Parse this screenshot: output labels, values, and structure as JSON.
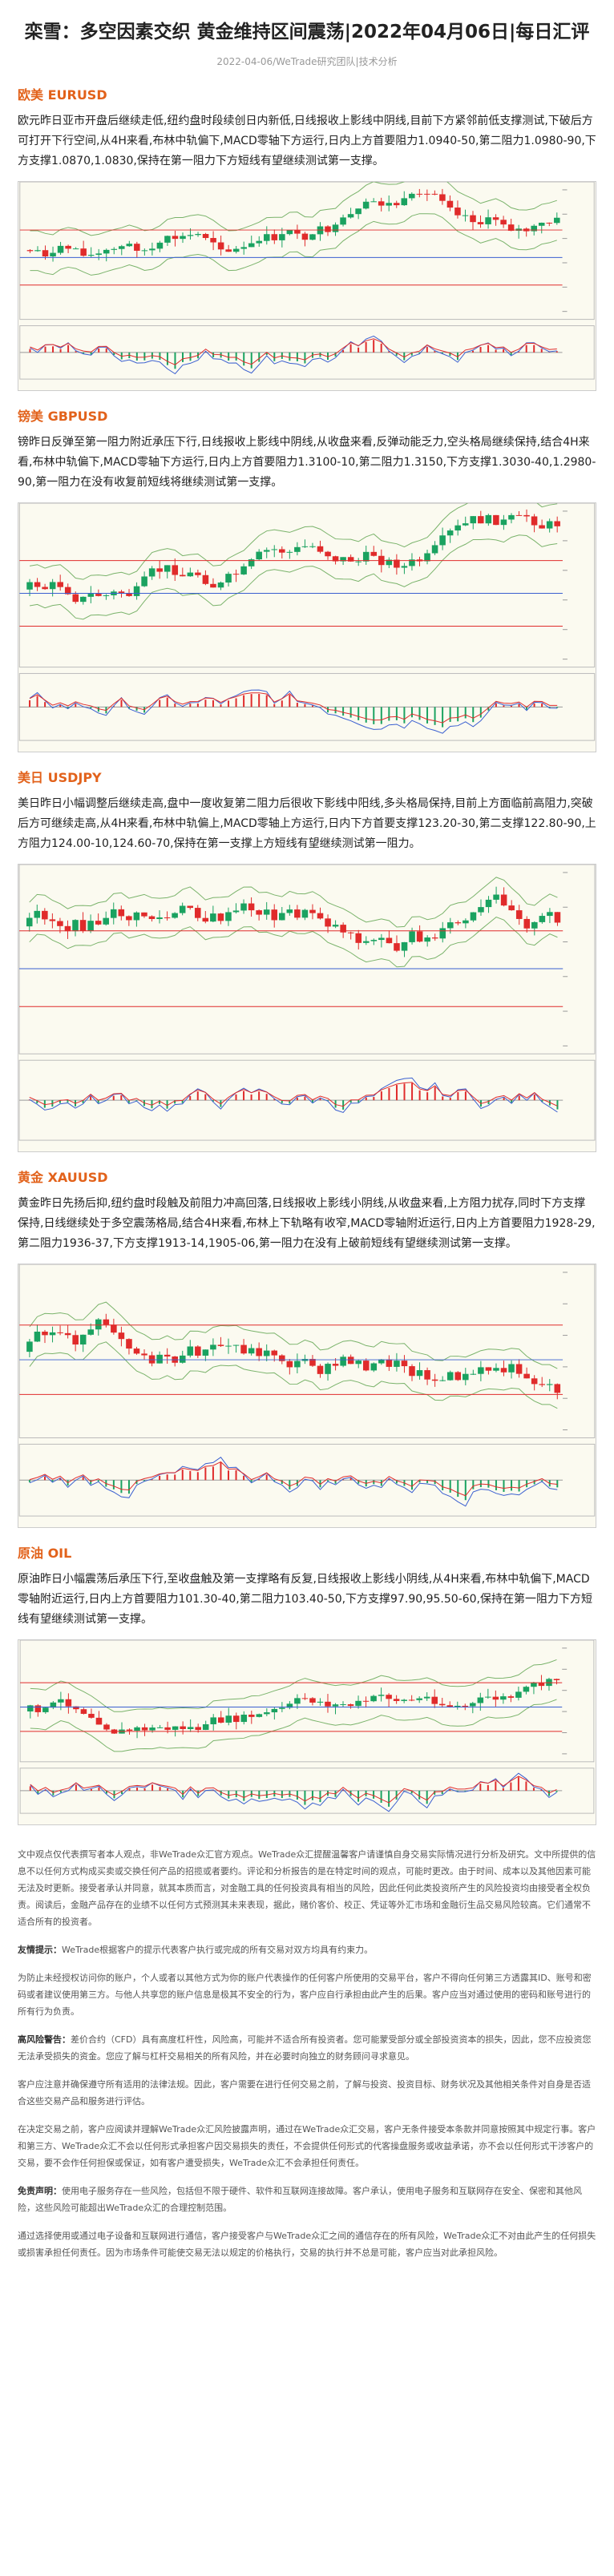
{
  "header": {
    "title": "栾雪：多空因素交织 黄金维持区间震荡|2022年04月06日|每日汇评",
    "meta": "2022-04-06/WeTrade研究团队|技术分析"
  },
  "sections": [
    {
      "heading": "欧美 EURUSD",
      "body": "欧元昨日亚市开盘后继续走低,纽约盘时段续创日内新低,日线报收上影线中阴线,目前下方紧邻前低支撑测试,下破后方可打开下行空间,从4H来看,布林中轨偏下,MACD零轴下方运行,日内上方首要阻力1.0940-50,第二阻力1.0980-90,下方支撑1.0870,1.0830,保持在第一阻力下方短线有望继续测试第一支撑。"
    },
    {
      "heading": "镑美 GBPUSD",
      "body": "镑昨日反弹至第一阻力附近承压下行,日线报收上影线中阴线,从收盘来看,反弹动能乏力,空头格局继续保持,结合4H来看,布林中轨偏下,MACD零轴下方运行,日内上方首要阻力1.3100-10,第二阻力1.3150,下方支撑1.3030-40,1.2980-90,第一阻力在没有收复前短线将继续测试第一支撑。"
    },
    {
      "heading": "美日 USDJPY",
      "body": "美日昨日小幅调整后继续走高,盘中一度收复第二阻力后很收下影线中阳线,多头格局保持,目前上方面临前高阻力,突破后方可继续走高,从4H来看,布林中轨偏上,MACD零轴上方运行,日内下方首要支撑123.20-30,第二支撑122.80-90,上方阻力124.00-10,124.60-70,保持在第一支撑上方短线有望继续测试第一阻力。"
    },
    {
      "heading": "黄金 XAUUSD",
      "body": "黄金昨日先扬后抑,纽约盘时段触及前阻力冲高回落,日线报收上影线小阴线,从收盘来看,上方阻力扰存,同时下方支撑保持,日线继续处于多空震荡格局,结合4H来看,布林上下轨略有收窄,MACD零轴附近运行,日内上方首要阻力1928-29,第二阻力1936-37,下方支撑1913-14,1905-06,第一阻力在没有上破前短线有望继续测试第一支撑。"
    },
    {
      "heading": "原油 OIL",
      "body": "原油昨日小幅震荡后承压下行,至收盘触及第一支撑略有反复,日线报收上影线小阴线,从4H来看,布林中轨偏下,MACD零轴附近运行,日内上方首要阻力101.30-40,第二阻力103.40-50,下方支撑97.90,95.50-60,保持在第一阻力下方短线有望继续测试第一支撑。"
    }
  ],
  "disclaimer": [
    {
      "text": "文中观点仅代表撰写者本人观点，非WeTrade众汇官方观点。WeTrade众汇提醒温馨客户请谨慎自身交易实际情况进行分析及研究。文中所提供的信息不以任何方式构成买卖或交换任何产品的招揽或者要约。评论和分析报告的是在特定时间的观点，可能时更改。由于时间、成本以及其他因素可能无法及时更新。接受者承认并同意，就其本质而言，对金融工具的任何投资具有相当的风险，因此任何此类投资所产生的风险投资均由接受者全权负责。阅读后，金融产品存在的业绩不以任何方式预测其未来表现，据此，赌价客价、校正、凭证等外汇市场和金融衍生品交易风险较高。它们通常不适合所有的投资者。"
    },
    {
      "label": "友情提示：",
      "text": "WeTrade根据客户的提示代表客户执行或完成的所有交易对双方均具有约束力。"
    },
    {
      "text": "为防止未经授权访问你的账户，个人或者以其他方式为你的账户代表操作的任何客户所使用的交易平台，客户不得向任何第三方透露其ID、账号和密码或者建议使用第三方。与他人共享您的账户信息是极其不安全的行为，客户应自行承担由此产生的后果。客户应当对通过使用的密码和账号进行的所有行为负责。"
    },
    {
      "label": "高风险警告：",
      "text": "差价合约（CFD）具有高度杠杆性，风险高，可能并不适合所有投资者。您可能蒙受部分或全部投资资本的损失，因此，您不应投资您无法承受损失的资金。您应了解与杠杆交易相关的所有风险，并在必要时向独立的财务顾问寻求意见。"
    },
    {
      "text": "客户应注意并确保遵守所有适用的法律法规。因此，客户需要在进行任何交易之前，了解与投资、投资目标、财务状况及其他相关条件对自身是否适合这些交易产品和服务进行评估。"
    },
    {
      "text": "在决定交易之前，客户应阅读并理解WeTrade众汇风险披露声明，通过在WeTrade众汇交易，客户无条件接受本条款并同意按照其中规定行事。客户和第三方、WeTrade众汇不会以任何形式承担客户因交易损失的责任，不会提供任何形式的代客操盘服务或收益承诺，亦不会以任何形式干涉客户的交易，要不会作任何担保或保证，如有客户遭受损失，WeTrade众汇不会承担任何责任。"
    },
    {
      "label": "免责声明：",
      "text": "使用电子服务存在一些风险，包括但不限于硬件、软件和互联网连接故障。客户承认，使用电子服务和互联网存在安全、保密和其他风险，这些风险可能超出WeTrade众汇的合理控制范围。"
    },
    {
      "text": "通过选择使用或通过电子设备和互联网进行通信，客户接受客户与WeTrade众汇之间的通信存在的所有风险，WeTrade众汇不对由此产生的任何损失或损害承担任何责任。因为市场条件可能使交易无法以规定的价格执行，交易的执行并不总是可能，客户应当对此承担风险。"
    }
  ]
}
